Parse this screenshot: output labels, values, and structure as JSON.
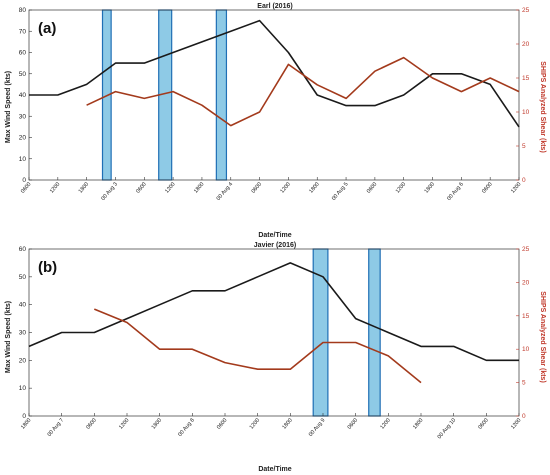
{
  "chart_data": [
    {
      "type": "line",
      "panel_label": "(a)",
      "title": "Earl (2016)",
      "xlabel": "Date/Time",
      "ylabel": "Max Wind Speed (kts)",
      "ylabel_right": "SHIPS Analyzed Shear (kts)",
      "x_tick_labels": [
        "0600",
        "1200",
        "1800",
        "00 Aug 3",
        "0600",
        "1200",
        "1800",
        "00 Aug 4",
        "0600",
        "1200",
        "1800",
        "00 Aug 5",
        "0600",
        "1200",
        "1800",
        "00 Aug 6",
        "0600",
        "1200"
      ],
      "ylim": [
        0,
        80
      ],
      "ylim_right": [
        0,
        25
      ],
      "y_ticks": [
        0,
        10,
        20,
        30,
        40,
        50,
        60,
        70,
        80
      ],
      "y_ticks_right": [
        0,
        5,
        10,
        15,
        20,
        25
      ],
      "shaded_intervals": [
        [
          2.55,
          2.85
        ],
        [
          4.5,
          4.95
        ],
        [
          6.5,
          6.85
        ]
      ],
      "series": [
        {
          "axis": "left",
          "color": "#1a1a1a",
          "x": [
            0,
            1,
            2,
            3,
            4,
            5,
            6,
            7,
            8,
            9,
            10,
            11,
            12,
            13,
            14,
            15,
            16,
            17
          ],
          "values": [
            40,
            40,
            45,
            55,
            55,
            60,
            65,
            70,
            75,
            60,
            40,
            35,
            35,
            40,
            50,
            50,
            45,
            25
          ]
        },
        {
          "axis": "right",
          "color": "#a33a1c",
          "x": [
            2,
            3,
            4,
            5,
            6,
            7,
            8,
            9,
            10,
            11,
            12,
            13,
            14,
            15,
            16,
            17
          ],
          "values": [
            11,
            13,
            12,
            13,
            11,
            8,
            10,
            17,
            14,
            12,
            16,
            18,
            15,
            13,
            15,
            13
          ]
        }
      ]
    },
    {
      "type": "line",
      "panel_label": "(b)",
      "title": "Javier (2016)",
      "xlabel": "Date/Time",
      "ylabel": "Max Wind Speed (kts)",
      "ylabel_right": "SHIPS Analyzed Shear (kts)",
      "x_tick_labels": [
        "1800",
        "00 Aug 7",
        "0600",
        "1200",
        "1800",
        "00 Aug 8",
        "0600",
        "1200",
        "1800",
        "00 Aug 9",
        "0600",
        "1200",
        "1800",
        "00 Aug 10",
        "0600",
        "1200"
      ],
      "ylim": [
        0,
        60
      ],
      "ylim_right": [
        0,
        25
      ],
      "y_ticks": [
        0,
        10,
        20,
        30,
        40,
        50,
        60
      ],
      "y_ticks_right": [
        0,
        5,
        10,
        15,
        20,
        25
      ],
      "shaded_intervals": [
        [
          8.7,
          9.15
        ],
        [
          10.4,
          10.75
        ]
      ],
      "series": [
        {
          "axis": "left",
          "color": "#1a1a1a",
          "x": [
            0,
            1,
            2,
            3,
            4,
            5,
            6,
            7,
            8,
            9,
            10,
            11,
            12,
            13,
            14,
            15
          ],
          "values": [
            25,
            30,
            30,
            35,
            40,
            45,
            45,
            50,
            55,
            50,
            35,
            30,
            25,
            25,
            20,
            20
          ]
        },
        {
          "axis": "right",
          "color": "#a33a1c",
          "x": [
            2,
            3,
            4,
            5,
            6,
            7,
            8,
            9,
            10,
            11,
            12
          ],
          "values": [
            16,
            14,
            10,
            10,
            8,
            7,
            7,
            11,
            11,
            9,
            5
          ]
        }
      ]
    }
  ]
}
